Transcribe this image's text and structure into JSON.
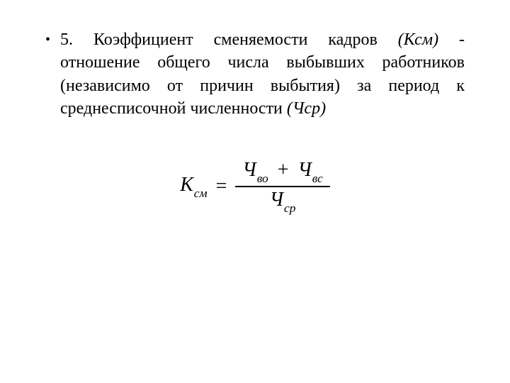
{
  "colors": {
    "background": "#ffffff",
    "text": "#000000",
    "rule": "#000000"
  },
  "typography": {
    "body_font_family": "Times New Roman",
    "body_font_size_pt": 18,
    "formula_font_size_pt": 21,
    "formula_style": "italic",
    "line_height": 1.35,
    "text_align": "justify"
  },
  "bullet": {
    "glyph": "•"
  },
  "paragraph": {
    "lead": "5. Коэффициент сменяемости кадров ",
    "emph1": "(Ксм)",
    "mid": " - отношение общего числа выбывших работников (независимо от причин выбытия) за период к среднесписочной численности ",
    "emph2": "(Чср)"
  },
  "formula": {
    "lhs_base": "К",
    "lhs_sub": "см",
    "equals": "=",
    "num_term1_base": "Ч",
    "num_term1_sub": "во",
    "plus": "+",
    "num_term2_base": "Ч",
    "num_term2_sub": "вс",
    "den_base": "Ч",
    "den_sub": "ср"
  }
}
